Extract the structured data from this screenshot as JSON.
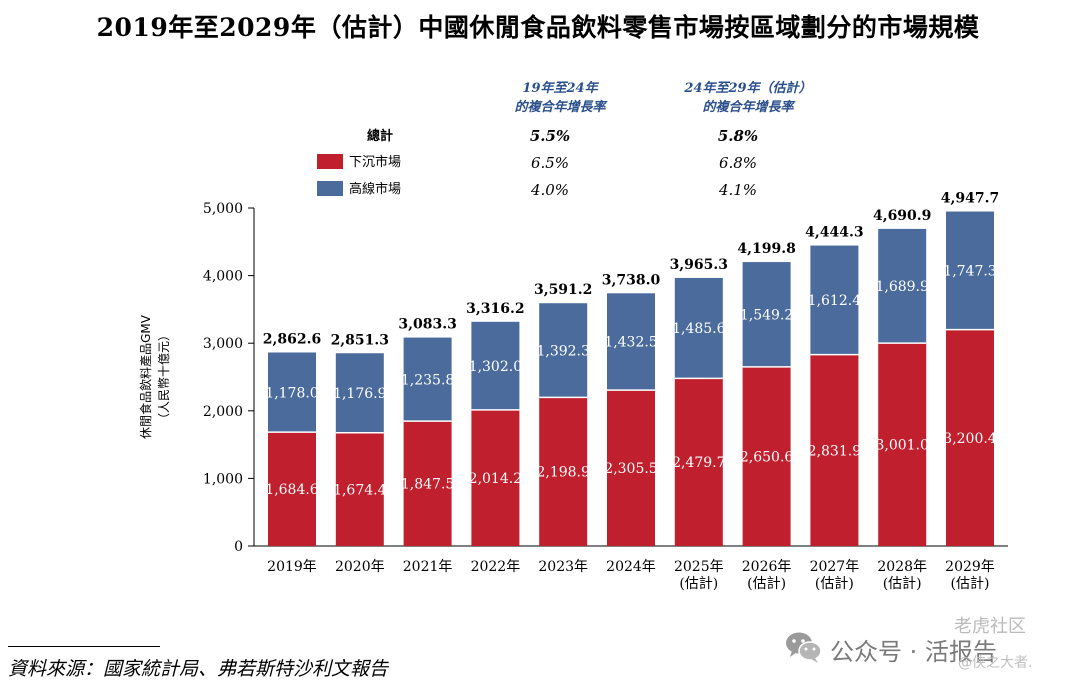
{
  "title": "2019年至2029年（估計）中國休閒食品飲料零售市場按區域劃分的市場規模",
  "legend": {
    "cagr_headers": [
      [
        "19年至24年",
        "的複合年增長率"
      ],
      [
        "24年至29年（估計）",
        "的複合年增長率"
      ]
    ],
    "rows": [
      {
        "label": "總計",
        "color": "",
        "values": [
          "5.5%",
          "5.8%"
        ],
        "bold": true
      },
      {
        "label": "下沉市場",
        "color": "#c0202e",
        "values": [
          "6.5%",
          "6.8%"
        ],
        "bold": false
      },
      {
        "label": "高線市場",
        "color": "#4a6b9b",
        "values": [
          "4.0%",
          "4.1%"
        ],
        "bold": false
      }
    ]
  },
  "chart_data": {
    "type": "bar",
    "stacked": true,
    "categories": [
      "2019年",
      "2020年",
      "2021年",
      "2022年",
      "2023年",
      "2024年",
      "2025年\n(估計)",
      "2026年\n(估計)",
      "2027年\n(估計)",
      "2028年\n(估計)",
      "2029年\n(估計)"
    ],
    "series": [
      {
        "name": "下沉市場",
        "color": "#c0202e",
        "values": [
          1684.6,
          1674.4,
          1847.5,
          2014.2,
          2198.9,
          2305.5,
          2479.7,
          2650.6,
          2831.9,
          3001.0,
          3200.4
        ],
        "labels": [
          "1,684.6",
          "1,674.4",
          "1,847.5",
          "2,014.2",
          "2,198.9",
          "2,305.5",
          "2,479.7",
          "2,650.6",
          "2,831.9",
          "3,001.0",
          "3,200.4"
        ]
      },
      {
        "name": "高線市場",
        "color": "#4a6b9b",
        "values": [
          1178.0,
          1176.9,
          1235.8,
          1302.0,
          1392.3,
          1432.5,
          1485.6,
          1549.2,
          1612.4,
          1689.9,
          1747.3
        ],
        "labels": [
          "1,178.0",
          "1,176.9",
          "1,235.8",
          "1,302.0",
          "1,392.3",
          "1,432.5",
          "1,485.6",
          "1,549.2",
          "1,612.4",
          "1,689.9",
          "1,747.3"
        ]
      }
    ],
    "totals": [
      2862.6,
      2851.3,
      3083.3,
      3316.2,
      3591.2,
      3738.0,
      3965.3,
      4199.8,
      4444.3,
      4690.9,
      4947.7
    ],
    "total_labels": [
      "2,862.6",
      "2,851.3",
      "3,083.3",
      "3,316.2",
      "3,591.2",
      "3,738.0",
      "3,965.3",
      "4,199.8",
      "4,444.3",
      "4,690.9",
      "4,947.7"
    ],
    "ylabel": [
      "休閒食品飲料產品GMV",
      "（人民幣十億元）"
    ],
    "ylim": [
      0,
      5000
    ],
    "yticks": [
      0,
      1000,
      2000,
      3000,
      4000,
      5000
    ],
    "ytick_labels": [
      "0",
      "1,000",
      "2,000",
      "3,000",
      "4,000",
      "5,000"
    ],
    "grid": false
  },
  "source": "資料來源：國家統計局、弗若斯特沙利文報告",
  "watermark": {
    "icon": "wechat-icon",
    "text": "公众号 · 活报告",
    "top": "老虎社区",
    "bottom": "@侠之大者."
  }
}
